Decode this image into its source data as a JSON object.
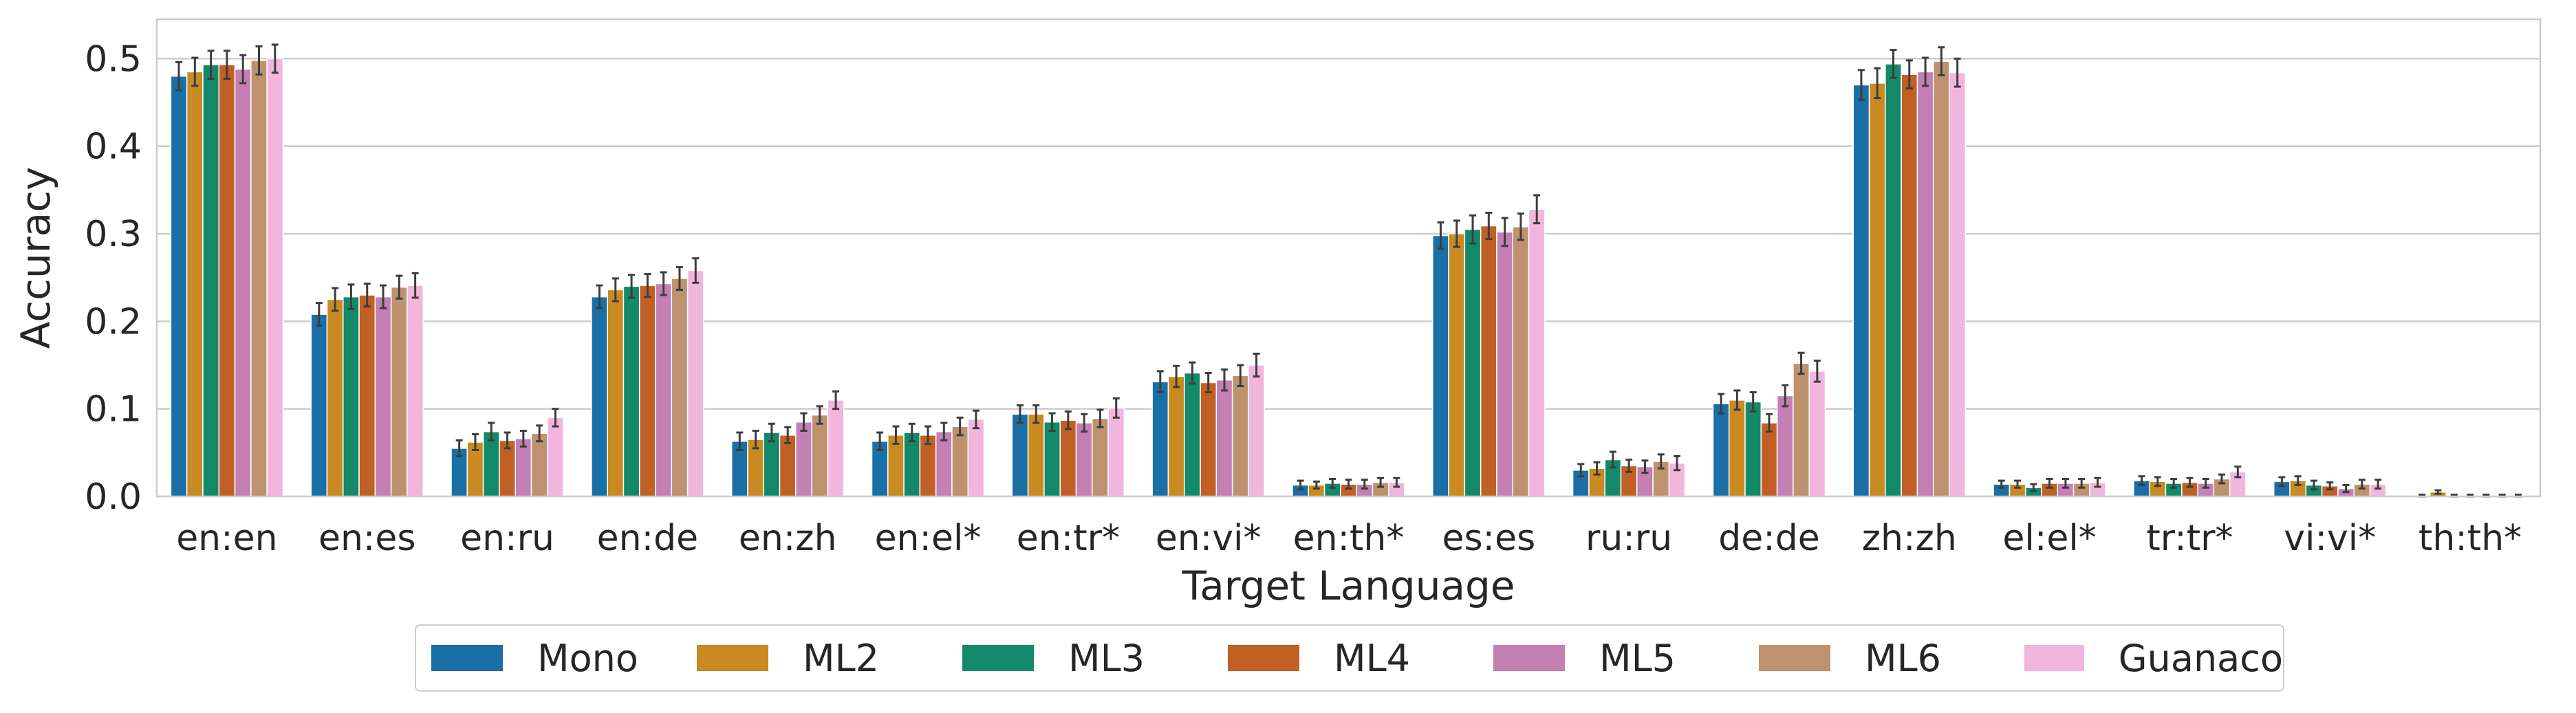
{
  "chart_data": {
    "type": "bar",
    "title": "",
    "xlabel": "Target Language",
    "ylabel": "Accuracy",
    "ylim": [
      0,
      0.545
    ],
    "yticks": [
      0.0,
      0.1,
      0.2,
      0.3,
      0.4,
      0.5
    ],
    "ytick_labels": [
      "0.0",
      "0.1",
      "0.2",
      "0.3",
      "0.4",
      "0.5"
    ],
    "grid": true,
    "legend_position": "bottom-center",
    "categories": [
      "en:en",
      "en:es",
      "en:ru",
      "en:de",
      "en:zh",
      "en:el*",
      "en:tr*",
      "en:vi*",
      "en:th*",
      "es:es",
      "ru:ru",
      "de:de",
      "zh:zh",
      "el:el*",
      "tr:tr*",
      "vi:vi*",
      "th:th*"
    ],
    "series": [
      {
        "name": "Mono",
        "color": "#1a6fa6",
        "values": [
          0.48,
          0.208,
          0.055,
          0.228,
          0.063,
          0.063,
          0.094,
          0.131,
          0.013,
          0.298,
          0.03,
          0.106,
          0.47,
          0.014,
          0.018,
          0.017,
          0.001
        ],
        "errors": [
          0.016,
          0.013,
          0.009,
          0.013,
          0.01,
          0.01,
          0.01,
          0.012,
          0.005,
          0.015,
          0.007,
          0.011,
          0.017,
          0.004,
          0.005,
          0.005,
          0.001
        ]
      },
      {
        "name": "ML2",
        "color": "#c88a21",
        "values": [
          0.485,
          0.225,
          0.062,
          0.236,
          0.065,
          0.07,
          0.094,
          0.137,
          0.013,
          0.3,
          0.032,
          0.11,
          0.472,
          0.014,
          0.017,
          0.018,
          0.005
        ],
        "errors": [
          0.016,
          0.013,
          0.009,
          0.013,
          0.01,
          0.01,
          0.01,
          0.012,
          0.004,
          0.015,
          0.007,
          0.011,
          0.017,
          0.004,
          0.005,
          0.005,
          0.002
        ]
      },
      {
        "name": "ML3",
        "color": "#13896a",
        "values": [
          0.493,
          0.228,
          0.074,
          0.24,
          0.073,
          0.073,
          0.085,
          0.141,
          0.015,
          0.305,
          0.042,
          0.108,
          0.494,
          0.01,
          0.015,
          0.013,
          0.001
        ],
        "errors": [
          0.016,
          0.014,
          0.01,
          0.013,
          0.01,
          0.01,
          0.01,
          0.012,
          0.005,
          0.016,
          0.009,
          0.011,
          0.016,
          0.004,
          0.005,
          0.005,
          0.001
        ]
      },
      {
        "name": "ML4",
        "color": "#c16025",
        "values": [
          0.493,
          0.23,
          0.064,
          0.241,
          0.07,
          0.07,
          0.087,
          0.13,
          0.014,
          0.309,
          0.035,
          0.084,
          0.482,
          0.015,
          0.016,
          0.012,
          0.001
        ],
        "errors": [
          0.016,
          0.013,
          0.009,
          0.013,
          0.009,
          0.01,
          0.01,
          0.011,
          0.005,
          0.015,
          0.007,
          0.01,
          0.016,
          0.005,
          0.005,
          0.004,
          0.001
        ]
      },
      {
        "name": "ML5",
        "color": "#c47fb3",
        "values": [
          0.488,
          0.228,
          0.066,
          0.243,
          0.085,
          0.074,
          0.084,
          0.133,
          0.014,
          0.302,
          0.034,
          0.115,
          0.485,
          0.015,
          0.015,
          0.009,
          0.001
        ],
        "errors": [
          0.016,
          0.013,
          0.009,
          0.013,
          0.01,
          0.01,
          0.01,
          0.012,
          0.005,
          0.016,
          0.007,
          0.012,
          0.016,
          0.005,
          0.005,
          0.004,
          0.001
        ]
      },
      {
        "name": "ML6",
        "color": "#be926e",
        "values": [
          0.498,
          0.239,
          0.072,
          0.249,
          0.093,
          0.08,
          0.089,
          0.138,
          0.016,
          0.308,
          0.04,
          0.152,
          0.497,
          0.015,
          0.02,
          0.014,
          0.001
        ],
        "errors": [
          0.016,
          0.013,
          0.009,
          0.013,
          0.01,
          0.01,
          0.01,
          0.012,
          0.005,
          0.015,
          0.008,
          0.012,
          0.016,
          0.005,
          0.005,
          0.005,
          0.001
        ]
      },
      {
        "name": "Guanaco",
        "color": "#f2b6de",
        "values": [
          0.5,
          0.241,
          0.09,
          0.258,
          0.11,
          0.088,
          0.101,
          0.15,
          0.016,
          0.328,
          0.038,
          0.143,
          0.484,
          0.016,
          0.028,
          0.014,
          0.001
        ],
        "errors": [
          0.016,
          0.014,
          0.01,
          0.014,
          0.01,
          0.01,
          0.011,
          0.013,
          0.005,
          0.016,
          0.008,
          0.012,
          0.016,
          0.005,
          0.006,
          0.005,
          0.001
        ]
      }
    ]
  }
}
